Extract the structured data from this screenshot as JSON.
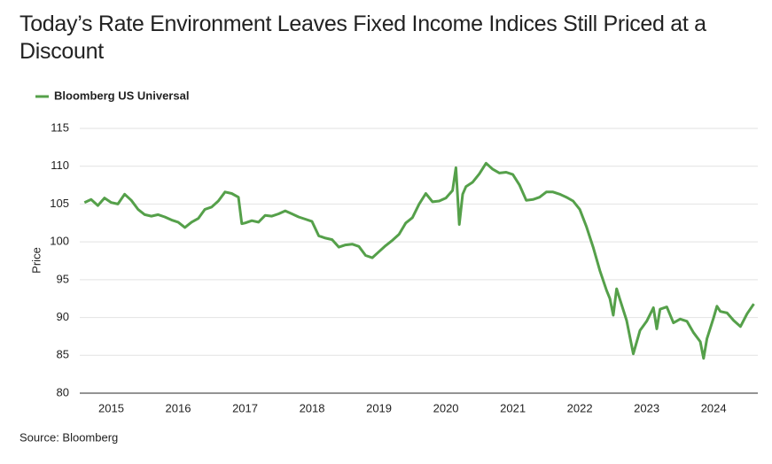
{
  "chart_data": {
    "type": "line",
    "title": "Today’s Rate Environment Leaves Fixed Income Indices Still Priced at a Discount",
    "y_label": "Price",
    "source": "Source: Bloomberg",
    "x": [
      2014.6,
      2014.7,
      2014.8,
      2014.9,
      2015.0,
      2015.1,
      2015.2,
      2015.3,
      2015.4,
      2015.5,
      2015.6,
      2015.7,
      2015.8,
      2015.9,
      2016.0,
      2016.1,
      2016.2,
      2016.3,
      2016.4,
      2016.5,
      2016.6,
      2016.7,
      2016.8,
      2016.9,
      2016.95,
      2017.0,
      2017.1,
      2017.2,
      2017.3,
      2017.4,
      2017.5,
      2017.6,
      2017.7,
      2017.8,
      2017.9,
      2018.0,
      2018.1,
      2018.2,
      2018.3,
      2018.4,
      2018.5,
      2018.6,
      2018.7,
      2018.8,
      2018.9,
      2019.0,
      2019.1,
      2019.2,
      2019.3,
      2019.4,
      2019.5,
      2019.6,
      2019.7,
      2019.8,
      2019.9,
      2020.0,
      2020.1,
      2020.15,
      2020.2,
      2020.25,
      2020.3,
      2020.4,
      2020.5,
      2020.6,
      2020.7,
      2020.8,
      2020.9,
      2021.0,
      2021.1,
      2021.2,
      2021.3,
      2021.4,
      2021.5,
      2021.6,
      2021.7,
      2021.8,
      2021.9,
      2022.0,
      2022.1,
      2022.2,
      2022.3,
      2022.4,
      2022.45,
      2022.5,
      2022.55,
      2022.6,
      2022.7,
      2022.8,
      2022.9,
      2023.0,
      2023.1,
      2023.15,
      2023.2,
      2023.3,
      2023.4,
      2023.5,
      2023.6,
      2023.7,
      2023.8,
      2023.85,
      2023.9,
      2024.0,
      2024.05,
      2024.1,
      2024.2,
      2024.3,
      2024.4,
      2024.5,
      2024.6
    ],
    "series": [
      {
        "name": "Bloomberg US Universal",
        "color": "#55a04a",
        "values": [
          105.2,
          105.6,
          104.8,
          105.8,
          105.2,
          105.0,
          106.3,
          105.5,
          104.3,
          103.6,
          103.4,
          103.6,
          103.3,
          102.9,
          102.6,
          101.9,
          102.6,
          103.1,
          104.3,
          104.6,
          105.4,
          106.6,
          106.4,
          105.9,
          102.4,
          102.5,
          102.8,
          102.6,
          103.5,
          103.4,
          103.7,
          104.1,
          103.7,
          103.3,
          103.0,
          102.7,
          100.8,
          100.5,
          100.3,
          99.3,
          99.6,
          99.7,
          99.4,
          98.2,
          97.9,
          98.7,
          99.5,
          100.2,
          101.0,
          102.5,
          103.2,
          105.0,
          106.4,
          105.3,
          105.4,
          105.8,
          106.8,
          109.8,
          102.3,
          106.3,
          107.3,
          107.9,
          109.0,
          110.4,
          109.6,
          109.1,
          109.2,
          108.9,
          107.5,
          105.5,
          105.6,
          105.9,
          106.6,
          106.6,
          106.3,
          105.9,
          105.4,
          104.3,
          102.0,
          99.3,
          96.2,
          93.6,
          92.5,
          90.3,
          93.8,
          92.4,
          89.6,
          85.2,
          88.3,
          89.5,
          91.3,
          88.5,
          91.1,
          91.4,
          89.3,
          89.8,
          89.5,
          88.0,
          86.8,
          84.6,
          87.2,
          90.0,
          91.5,
          90.8,
          90.6,
          89.6,
          88.8,
          90.5,
          91.8
        ]
      }
    ],
    "xlim": [
      2014.53,
      2024.66
    ],
    "xticks": [
      2015,
      2016,
      2017,
      2018,
      2019,
      2020,
      2021,
      2022,
      2023,
      2024
    ],
    "ylim": [
      80,
      115
    ],
    "yticks": [
      80,
      85,
      90,
      95,
      100,
      105,
      110,
      115
    ],
    "grid": true,
    "legend": "top-left"
  }
}
